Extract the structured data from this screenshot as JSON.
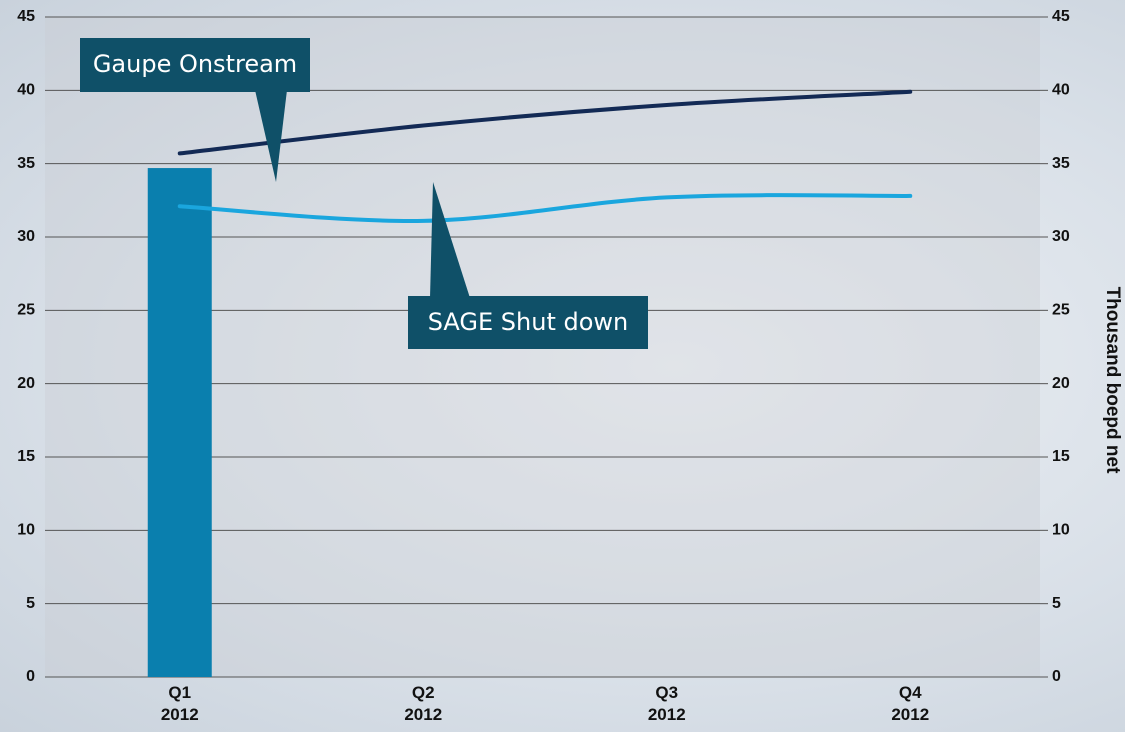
{
  "chart_data": {
    "type": "combo",
    "categories": [
      "Q1\n2012",
      "Q2\n2012",
      "Q3\n2012",
      "Q4\n2012"
    ],
    "series": [
      {
        "type": "bar",
        "color": "#0a7fae",
        "values": [
          34.7,
          null,
          null,
          null
        ]
      },
      {
        "type": "line",
        "color": "#132a55",
        "values": [
          35.7,
          37.6,
          39.0,
          39.9
        ]
      },
      {
        "type": "line",
        "color": "#1aa6de",
        "values": [
          32.1,
          31.1,
          32.7,
          32.8
        ]
      }
    ],
    "ylim": [
      0,
      45
    ],
    "yticks": [
      0,
      5,
      10,
      15,
      20,
      25,
      30,
      35,
      40,
      45
    ],
    "y2lim": [
      0,
      45
    ],
    "y2ticks": [
      0,
      5,
      10,
      15,
      20,
      25,
      30,
      35,
      40,
      45
    ],
    "y2_label": "Thousand boepd net",
    "annotations": [
      "Gaupe Onstream",
      "SAGE Shut down"
    ],
    "grid": true
  }
}
